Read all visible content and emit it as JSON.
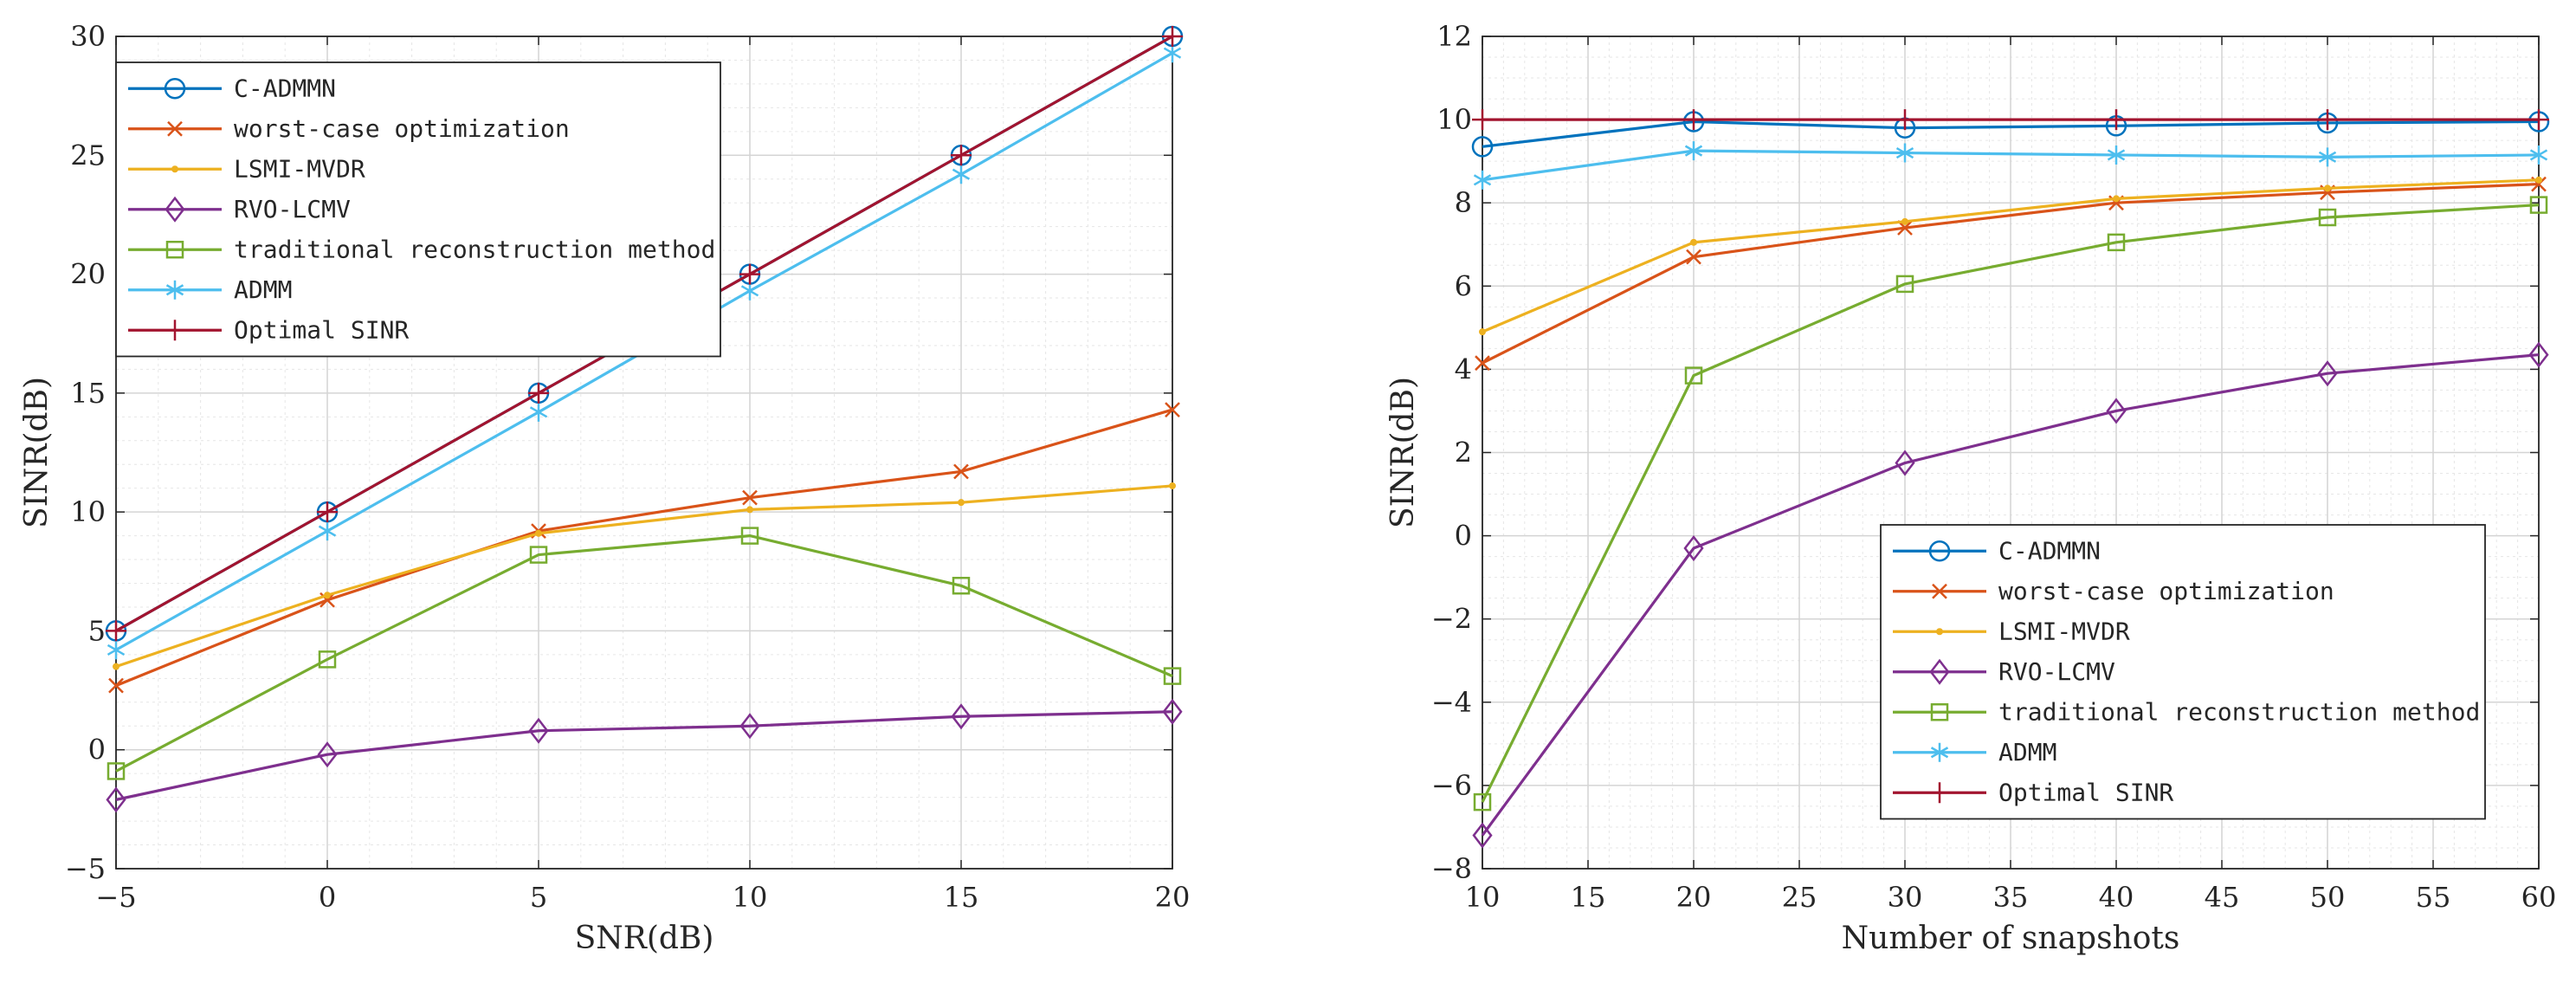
{
  "chart_data": [
    {
      "type": "line",
      "xlabel": "SNR(dB)",
      "ylabel": "SINR(dB)",
      "xlim": [
        -5,
        20
      ],
      "ylim": [
        -5,
        30
      ],
      "xticks": [
        -5,
        0,
        5,
        10,
        15,
        20
      ],
      "yticks": [
        -5,
        0,
        5,
        10,
        15,
        20,
        25,
        30
      ],
      "grid": true,
      "legend_position": "top-left",
      "x": [
        -5,
        0,
        5,
        10,
        15,
        20
      ],
      "series": [
        {
          "name": "C-ADMMN",
          "color": "#0072BD",
          "marker": "circle",
          "values": [
            5.0,
            10.0,
            15.0,
            20.0,
            25.0,
            30.0
          ]
        },
        {
          "name": "worst-case optimization",
          "color": "#D95319",
          "marker": "x",
          "values": [
            2.7,
            6.3,
            9.2,
            10.6,
            11.7,
            14.3
          ]
        },
        {
          "name": "LSMI-MVDR",
          "color": "#EDB120",
          "marker": "dot",
          "values": [
            3.5,
            6.5,
            9.1,
            10.1,
            10.4,
            11.1
          ]
        },
        {
          "name": "RVO-LCMV",
          "color": "#7E2F8E",
          "marker": "diamond",
          "values": [
            -2.1,
            -0.2,
            0.8,
            1.0,
            1.4,
            1.6
          ]
        },
        {
          "name": "traditional reconstruction method",
          "color": "#77AC30",
          "marker": "square",
          "values": [
            -0.9,
            3.8,
            8.2,
            9.0,
            6.9,
            3.1
          ]
        },
        {
          "name": "ADMM",
          "color": "#4DBEEE",
          "marker": "asterisk",
          "values": [
            4.2,
            9.2,
            14.2,
            19.3,
            24.2,
            29.3
          ]
        },
        {
          "name": "Optimal SINR",
          "color": "#A2142F",
          "marker": "plus",
          "values": [
            5.0,
            10.0,
            15.0,
            20.0,
            25.0,
            30.0
          ]
        }
      ]
    },
    {
      "type": "line",
      "xlabel": "Number of snapshots",
      "ylabel": "SINR(dB)",
      "xlim": [
        10,
        60
      ],
      "ylim": [
        -8,
        12
      ],
      "xticks": [
        10,
        15,
        20,
        25,
        30,
        35,
        40,
        45,
        50,
        55,
        60
      ],
      "yticks": [
        -8,
        -6,
        -4,
        -2,
        0,
        2,
        4,
        6,
        8,
        10,
        12
      ],
      "grid": true,
      "legend_position": "bottom-right",
      "x": [
        10,
        20,
        30,
        40,
        50,
        60
      ],
      "series": [
        {
          "name": "C-ADMMN",
          "color": "#0072BD",
          "marker": "circle",
          "values": [
            9.35,
            9.95,
            9.8,
            9.85,
            9.92,
            9.95
          ]
        },
        {
          "name": "worst-case optimization",
          "color": "#D95319",
          "marker": "x",
          "values": [
            4.15,
            6.7,
            7.4,
            8.0,
            8.25,
            8.45
          ]
        },
        {
          "name": "LSMI-MVDR",
          "color": "#EDB120",
          "marker": "dot",
          "values": [
            4.9,
            7.05,
            7.55,
            8.1,
            8.35,
            8.55
          ]
        },
        {
          "name": "RVO-LCMV",
          "color": "#7E2F8E",
          "marker": "diamond",
          "values": [
            -7.2,
            -0.3,
            1.75,
            3.0,
            3.9,
            4.35
          ]
        },
        {
          "name": "traditional reconstruction method",
          "color": "#77AC30",
          "marker": "square",
          "values": [
            -6.4,
            3.85,
            6.05,
            7.05,
            7.65,
            7.95
          ]
        },
        {
          "name": "ADMM",
          "color": "#4DBEEE",
          "marker": "asterisk",
          "values": [
            8.55,
            9.25,
            9.2,
            9.15,
            9.1,
            9.15
          ]
        },
        {
          "name": "Optimal SINR",
          "color": "#A2142F",
          "marker": "plus",
          "values": [
            10.0,
            10.0,
            10.0,
            10.0,
            10.0,
            10.0
          ]
        }
      ]
    }
  ]
}
